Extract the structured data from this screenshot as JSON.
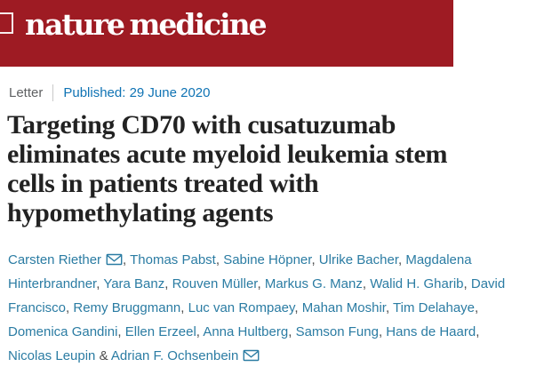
{
  "header": {
    "journal_logo": "nature medicine"
  },
  "meta": {
    "article_type": "Letter",
    "published": "Published: 29 June 2020"
  },
  "title": {
    "line1": "Targeting CD70 with cusatuzumab",
    "line2": "eliminates acute myeloid leukemia stem",
    "line3": "cells in patients treated with",
    "line4": "hypomethylating agents"
  },
  "authors": {
    "separator": ", ",
    "last_separator": " & ",
    "email_icon": "envelope-icon",
    "list": [
      {
        "name": "Carsten Riether",
        "email": true
      },
      {
        "name": "Thomas Pabst",
        "email": false
      },
      {
        "name": "Sabine Höpner",
        "email": false
      },
      {
        "name": "Ulrike Bacher",
        "email": false
      },
      {
        "name": "Magdalena Hinterbrandner",
        "email": false
      },
      {
        "name": "Yara Banz",
        "email": false
      },
      {
        "name": "Rouven Müller",
        "email": false
      },
      {
        "name": "Markus G. Manz",
        "email": false
      },
      {
        "name": "Walid H. Gharib",
        "email": false
      },
      {
        "name": "David Francisco",
        "email": false
      },
      {
        "name": "Remy Bruggmann",
        "email": false
      },
      {
        "name": "Luc van Rompaey",
        "email": false
      },
      {
        "name": "Mahan Moshir",
        "email": false
      },
      {
        "name": "Tim Delahaye",
        "email": false
      },
      {
        "name": "Domenica Gandini",
        "email": false
      },
      {
        "name": "Ellen Erzeel",
        "email": false
      },
      {
        "name": "Anna Hultberg",
        "email": false
      },
      {
        "name": "Samson Fung",
        "email": false
      },
      {
        "name": "Hans de Haard",
        "email": false
      },
      {
        "name": "Nicolas Leupin",
        "email": false
      },
      {
        "name": "Adrian F. Ochsenbein",
        "email": true
      }
    ]
  },
  "colors": {
    "banner_red": "#9e1b23",
    "logo_text": "#ffffff",
    "published_link": "#0f73b4",
    "article_type_text": "#5f6163",
    "title_text": "#222222",
    "author_link": "#2b7ca3",
    "separator_text": "#4c4c4c"
  }
}
